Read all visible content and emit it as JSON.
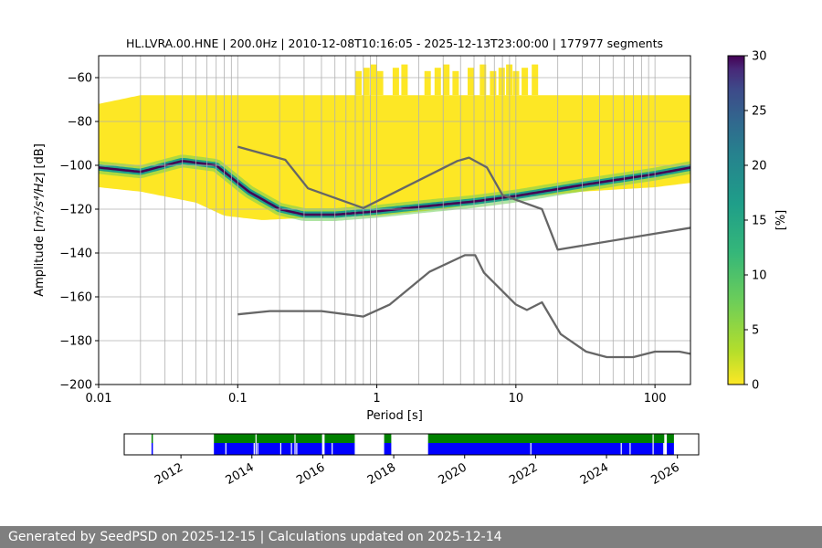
{
  "chart_data": [
    {
      "type": "heatmap",
      "title": "HL.LVRA.00.HNE | 200.0Hz | 2010-12-08T10:16:05 - 2025-12-13T23:00:00 | 177977 segments",
      "xlabel": "Period [s]",
      "ylabel_prefix": "Amplitude [",
      "ylabel_unit": "m²/s⁴/Hz",
      "ylabel_suffix": "] [dB]",
      "xscale": "log",
      "xlim": [
        0.01,
        180
      ],
      "ylim": [
        -200,
        -50
      ],
      "xticks": [
        0.01,
        0.1,
        1,
        10,
        100
      ],
      "xtick_labels": [
        "0.01",
        "0.1",
        "1",
        "10",
        "100"
      ],
      "yticks": [
        -60,
        -80,
        -100,
        -120,
        -140,
        -160,
        -180,
        -200
      ],
      "ytick_labels": [
        "−60",
        "−80",
        "−100",
        "−120",
        "−140",
        "−160",
        "−180",
        "−200"
      ],
      "grid": true,
      "colorbar": {
        "label": "[%]",
        "range": [
          0,
          30
        ],
        "ticks": [
          0,
          5,
          10,
          15,
          20,
          25,
          30
        ],
        "tick_labels": [
          "0",
          "5",
          "10",
          "15",
          "20",
          "25",
          "30"
        ],
        "colormap": "viridis (reversed)"
      },
      "density": {
        "period_range": [
          0.01,
          180
        ],
        "lower_bound_db": [
          [
            0.01,
            -110
          ],
          [
            0.02,
            -112
          ],
          [
            0.05,
            -117
          ],
          [
            0.08,
            -123
          ],
          [
            0.15,
            -125
          ],
          [
            0.3,
            -124
          ],
          [
            1,
            -123
          ],
          [
            3,
            -120
          ],
          [
            10,
            -115
          ],
          [
            30,
            -112
          ],
          [
            100,
            -110
          ],
          [
            180,
            -108
          ]
        ],
        "upper_bound_db": [
          [
            0.01,
            -72
          ],
          [
            0.02,
            -68
          ],
          [
            0.3,
            -68
          ],
          [
            1,
            -68
          ],
          [
            30,
            -68
          ],
          [
            180,
            -68
          ]
        ],
        "mode_db": [
          [
            0.01,
            -101
          ],
          [
            0.02,
            -103
          ],
          [
            0.04,
            -98
          ],
          [
            0.07,
            -100
          ],
          [
            0.12,
            -112
          ],
          [
            0.2,
            -120
          ],
          [
            0.3,
            -122.5
          ],
          [
            0.5,
            -122.5
          ],
          [
            1,
            -121
          ],
          [
            2,
            -119
          ],
          [
            5,
            -116.5
          ],
          [
            10,
            -114
          ],
          [
            30,
            -109
          ],
          [
            100,
            -104
          ],
          [
            180,
            -101
          ]
        ],
        "sparse_top_db": -57
      },
      "series": [
        {
          "name": "",
          "color": "#666666",
          "points": [
            [
              0.1,
              -91.5
            ],
            [
              0.22,
              -97.5
            ],
            [
              0.32,
              -110.5
            ],
            [
              0.8,
              -119.5
            ],
            [
              3.8,
              -98
            ],
            [
              4.6,
              -96.5
            ],
            [
              6.2,
              -101
            ],
            [
              8,
              -113.5
            ],
            [
              15.4,
              -120
            ],
            [
              20,
              -138.5
            ],
            [
              180,
              -128.5
            ]
          ]
        },
        {
          "name": "",
          "color": "#666666",
          "points": [
            [
              0.1,
              -168
            ],
            [
              0.17,
              -166.5
            ],
            [
              0.4,
              -166.5
            ],
            [
              0.8,
              -169
            ],
            [
              1.24,
              -163.5
            ],
            [
              2.4,
              -148.5
            ],
            [
              4.3,
              -141
            ],
            [
              5.1,
              -141
            ],
            [
              5.9,
              -149
            ],
            [
              10,
              -163.5
            ],
            [
              12,
              -166
            ],
            [
              15.4,
              -162.5
            ],
            [
              21,
              -177
            ],
            [
              32,
              -185
            ],
            [
              45,
              -187.5
            ],
            [
              70,
              -187.5
            ],
            [
              100,
              -185
            ],
            [
              150,
              -185
            ],
            [
              180,
              -186
            ]
          ]
        }
      ]
    },
    {
      "type": "bar",
      "title": "",
      "xlabel": "",
      "ylabel": "",
      "xlim": [
        2010.4,
        2026.6
      ],
      "xticks": [
        2012,
        2014,
        2016,
        2018,
        2020,
        2022,
        2024,
        2026
      ],
      "xtick_labels": [
        "2012",
        "2014",
        "2016",
        "2018",
        "2020",
        "2022",
        "2024",
        "2026"
      ],
      "series": [
        {
          "name": "",
          "color": "#008000",
          "intervals": [
            [
              2011.17,
              2011.2
            ],
            [
              2012.93,
              2015.98
            ],
            [
              2016.05,
              2016.9
            ],
            [
              2017.73,
              2017.93
            ],
            [
              2018.97,
              2025.63
            ],
            [
              2025.7,
              2025.9
            ]
          ]
        },
        {
          "name": "",
          "color": "#0000ff",
          "intervals": [
            [
              2011.17,
              2011.2
            ],
            [
              2012.93,
              2015.98
            ],
            [
              2016.05,
              2016.9
            ],
            [
              2017.73,
              2017.93
            ],
            [
              2018.97,
              2025.63
            ],
            [
              2025.7,
              2025.9
            ]
          ]
        }
      ],
      "gaps_in_blue": [
        2013.25,
        2014.05,
        2014.15,
        2014.8,
        2015.1,
        2015.25,
        2016.25,
        2021.85,
        2024.4,
        2024.65,
        2025.6
      ],
      "gaps_in_green": [
        2014.1,
        2015.2,
        2025.3
      ]
    }
  ],
  "footer": {
    "text": "Generated by SeedPSD on 2025-12-15 | Calculations updated on 2025-12-14"
  }
}
